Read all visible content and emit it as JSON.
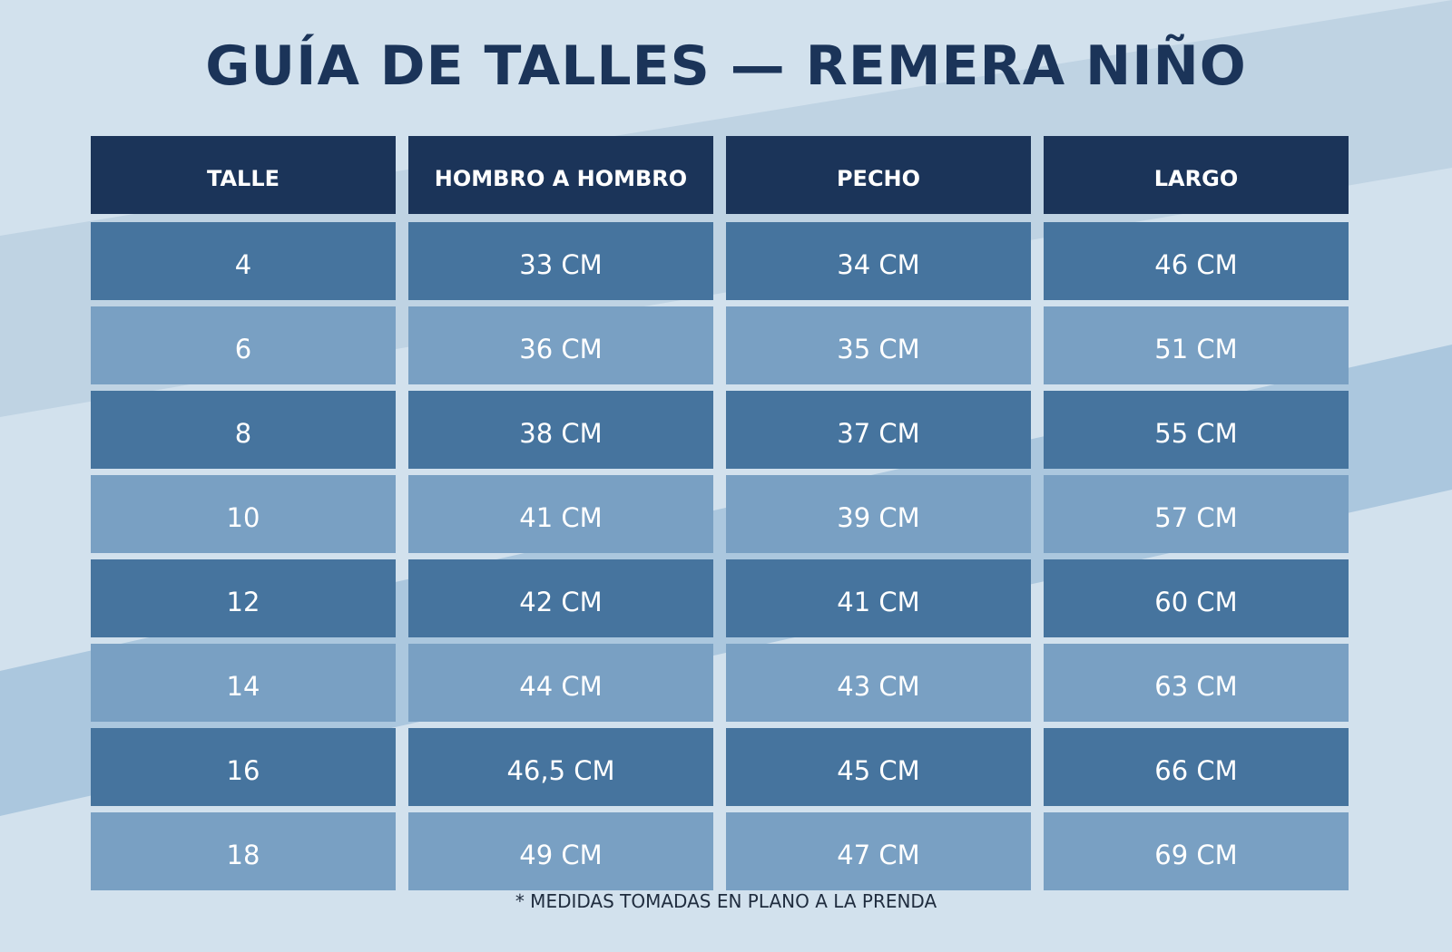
{
  "title": "GUÍA DE TALLES — REMERA NIÑO",
  "columns": [
    "TALLE",
    "HOMBRO A HOMBRO",
    "PECHO",
    "LARGO"
  ],
  "rows": [
    [
      "4",
      "33 CM",
      "34 CM",
      "46 CM"
    ],
    [
      "6",
      "36 CM",
      "35 CM",
      "51 CM"
    ],
    [
      "8",
      "38 CM",
      "37 CM",
      "55 CM"
    ],
    [
      "10",
      "41 CM",
      "39 CM",
      "57 CM"
    ],
    [
      "12",
      "42 CM",
      "41 CM",
      "60 CM"
    ],
    [
      "14",
      "44 CM",
      "43 CM",
      "63 CM"
    ],
    [
      "16",
      "46,5 CM",
      "45 CM",
      "66 CM"
    ],
    [
      "18",
      "49 CM",
      "47 CM",
      "69 CM"
    ]
  ],
  "note": "* MEDIDAS TOMADAS EN PLANO A LA PRENDA",
  "colors": {
    "background": "#d2e1ed",
    "header": "#1b3459",
    "row_dark": "#46749e",
    "row_light": "#79a0c3",
    "band_1": "#bfd3e3",
    "band_2": "#abc7de"
  }
}
